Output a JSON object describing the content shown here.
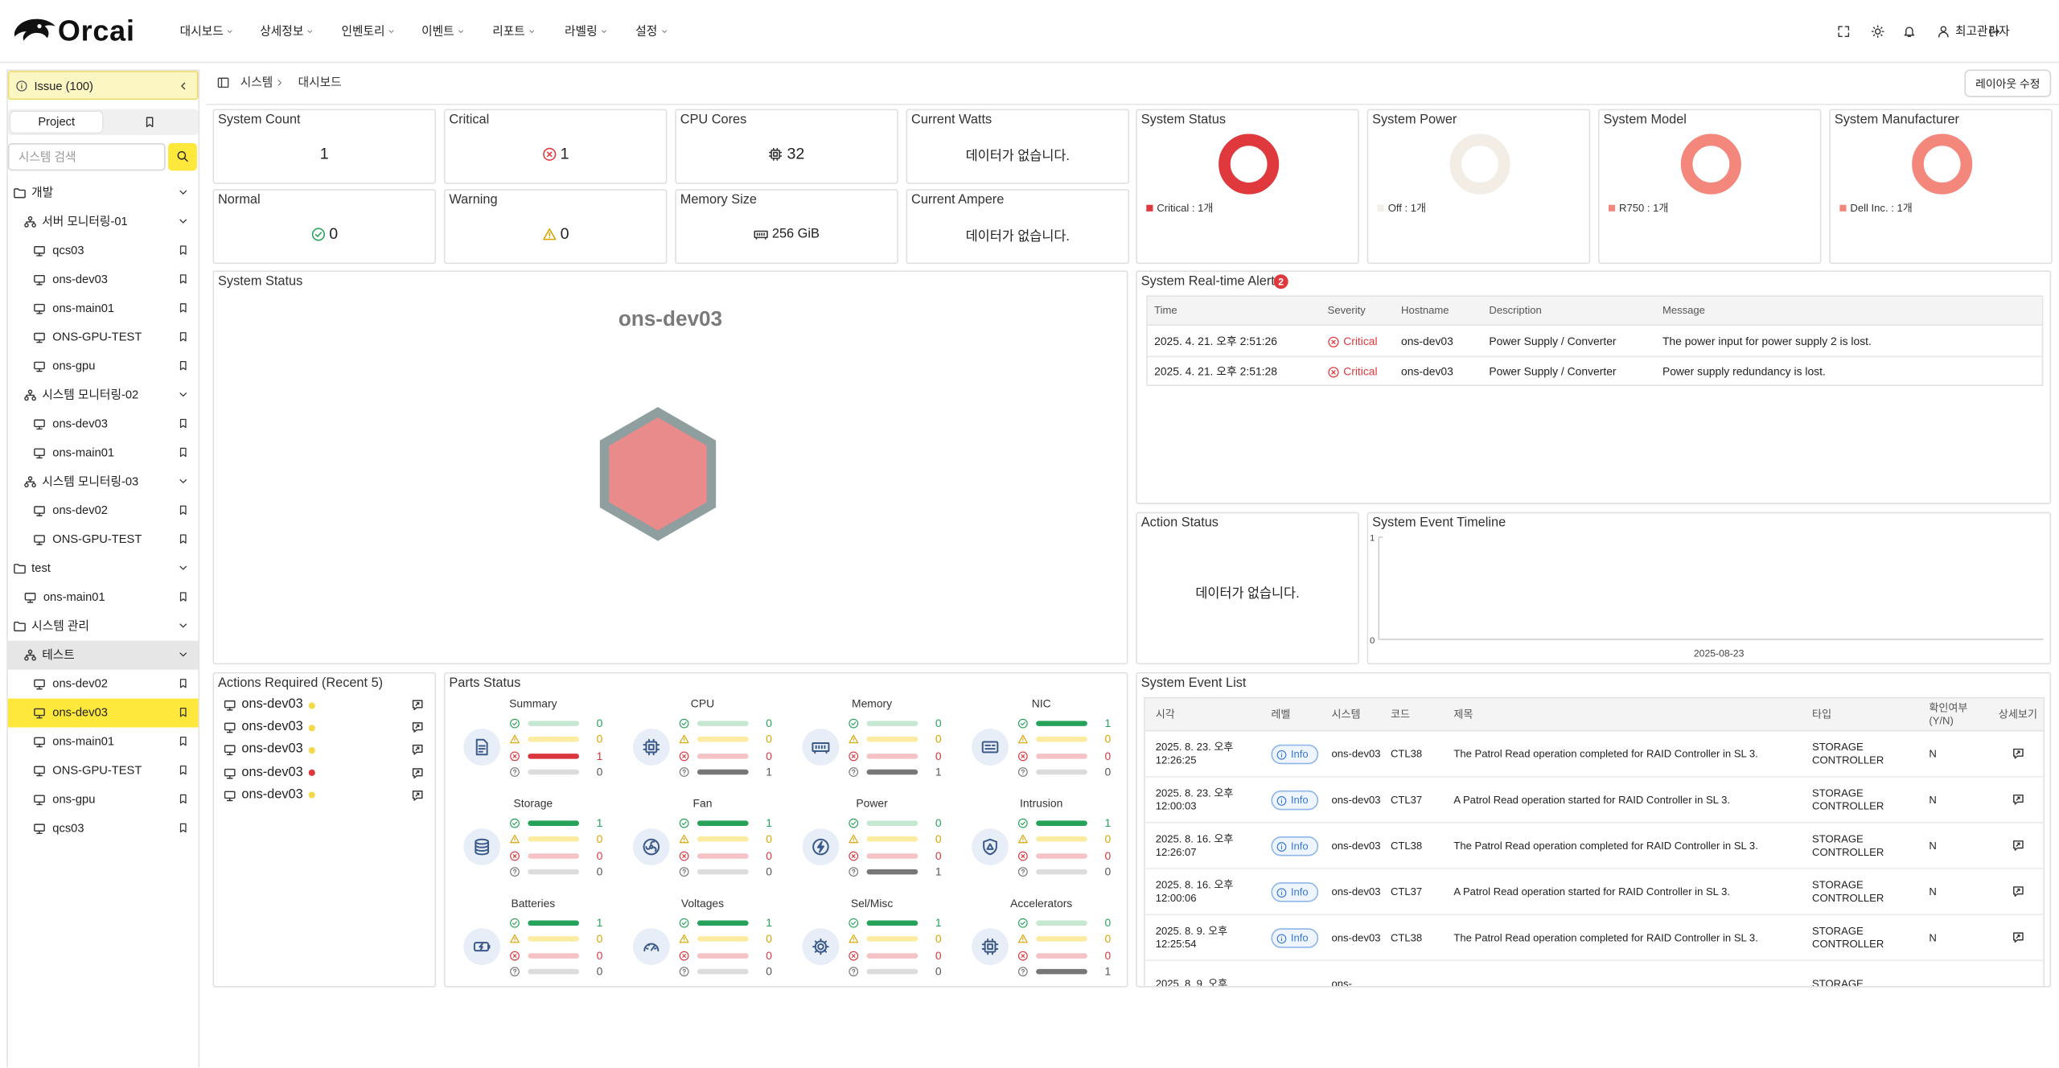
{
  "header": {
    "logo": "Orcai",
    "nav": [
      "대시보드",
      "상세정보",
      "인벤토리",
      "이벤트",
      "리포트",
      "라벨링",
      "설정"
    ],
    "user": "최고관리자"
  },
  "sidebar": {
    "issue": "Issue (100)",
    "tab": "Project",
    "search_placeholder": "시스템 검색",
    "tree": [
      {
        "label": "개발",
        "kind": "folder",
        "level": 0
      },
      {
        "label": "서버 모니터링-01",
        "kind": "group",
        "level": 1
      },
      {
        "label": "qcs03",
        "kind": "system",
        "level": 2
      },
      {
        "label": "ons-dev03",
        "kind": "system",
        "level": 2
      },
      {
        "label": "ons-main01",
        "kind": "system",
        "level": 2
      },
      {
        "label": "ONS-GPU-TEST",
        "kind": "system",
        "level": 2
      },
      {
        "label": "ons-gpu",
        "kind": "system",
        "level": 2
      },
      {
        "label": "시스템 모니터링-02",
        "kind": "group",
        "level": 1
      },
      {
        "label": "ons-dev03",
        "kind": "system",
        "level": 2
      },
      {
        "label": "ons-main01",
        "kind": "system",
        "level": 2
      },
      {
        "label": "시스템 모니터링-03",
        "kind": "group",
        "level": 1
      },
      {
        "label": "ons-dev02",
        "kind": "system",
        "level": 2
      },
      {
        "label": "ONS-GPU-TEST",
        "kind": "system",
        "level": 2
      },
      {
        "label": "test",
        "kind": "folder",
        "level": 0
      },
      {
        "label": "ons-main01",
        "kind": "system",
        "level": 1
      },
      {
        "label": "시스템 관리",
        "kind": "folder",
        "level": 0
      },
      {
        "label": "테스트",
        "kind": "group",
        "level": 1,
        "background": "#e6e6e6"
      },
      {
        "label": "ons-dev02",
        "kind": "system",
        "level": 2
      },
      {
        "label": "ons-dev03",
        "kind": "system",
        "level": 2,
        "background": "#fde83b"
      },
      {
        "label": "ons-main01",
        "kind": "system",
        "level": 2
      },
      {
        "label": "ONS-GPU-TEST",
        "kind": "system",
        "level": 2
      },
      {
        "label": "ons-gpu",
        "kind": "system",
        "level": 2
      },
      {
        "label": "qcs03",
        "kind": "system",
        "level": 2
      }
    ]
  },
  "breadcrumb": [
    "시스템",
    "대시보드"
  ],
  "layout_button": "레이아웃 수정",
  "stat_cards": [
    {
      "title": "System Count",
      "value": 1
    },
    {
      "title": "Critical",
      "value": 1
    },
    {
      "title": "CPU Cores",
      "value": 32
    },
    {
      "title": "Current Watts",
      "text": "데이터가 없습니다."
    },
    {
      "title": "Normal",
      "value": 0
    },
    {
      "title": "Warning",
      "value": 0
    },
    {
      "title": "Memory Size",
      "text": "256 GiB"
    },
    {
      "title": "Current Ampere",
      "text": "데이터가 없습니다."
    }
  ],
  "donut_cards": [
    {
      "title": "System Status",
      "legend": "Critical : 1개",
      "value": 1,
      "color": "#e0393d"
    },
    {
      "title": "System Power",
      "legend": "Off : 1개",
      "value": 1,
      "color": "#f3ede6"
    },
    {
      "title": "System Model",
      "legend": "R750 : 1개",
      "value": 1,
      "color": "#f4877b"
    },
    {
      "title": "System Manufacturer",
      "legend": "Dell Inc. : 1개",
      "value": 1,
      "color": "#f4877b"
    }
  ],
  "status_panel": {
    "title": "System Status",
    "host": "ons-dev03"
  },
  "alerts": {
    "title": "System Real-time Alert",
    "count": 2,
    "columns": [
      "Time",
      "Severity",
      "Hostname",
      "Description",
      "Message"
    ],
    "rows": [
      [
        "2025. 4. 21. 오후 2:51:26",
        "Critical",
        "ons-dev03",
        "Power Supply / Converter",
        "The power input for power supply 2 is lost."
      ],
      [
        "2025. 4. 21. 오후 2:51:28",
        "Critical",
        "ons-dev03",
        "Power Supply / Converter",
        "Power supply redundancy is lost."
      ]
    ]
  },
  "action_status": {
    "title": "Action Status",
    "empty": "데이터가 없습니다."
  },
  "timeline": {
    "title": "System Event Timeline",
    "ylim": [
      0,
      1
    ],
    "yticks": [
      0,
      1
    ],
    "x_label": "2025-08-23"
  },
  "actions_required": {
    "title": "Actions Required (Recent 5)",
    "items": [
      {
        "host": "ons-dev03",
        "color": "#f5d84a"
      },
      {
        "host": "ons-dev03",
        "color": "#f5d84a"
      },
      {
        "host": "ons-dev03",
        "color": "#f5d84a"
      },
      {
        "host": "ons-dev03",
        "color": "#e0393d"
      },
      {
        "host": "ons-dev03",
        "color": "#f5d84a"
      }
    ]
  },
  "parts": {
    "title": "Parts Status",
    "groups": [
      {
        "name": "Summary",
        "counts": [
          0,
          0,
          1,
          0
        ]
      },
      {
        "name": "CPU",
        "counts": [
          0,
          0,
          0,
          1
        ]
      },
      {
        "name": "Memory",
        "counts": [
          0,
          0,
          0,
          1
        ]
      },
      {
        "name": "NIC",
        "counts": [
          1,
          0,
          0,
          0
        ]
      },
      {
        "name": "Storage",
        "counts": [
          1,
          0,
          0,
          0
        ]
      },
      {
        "name": "Fan",
        "counts": [
          1,
          0,
          0,
          0
        ]
      },
      {
        "name": "Power",
        "counts": [
          0,
          0,
          0,
          1
        ]
      },
      {
        "name": "Intrusion",
        "counts": [
          1,
          0,
          0,
          0
        ]
      },
      {
        "name": "Batteries",
        "counts": [
          1,
          0,
          0,
          0
        ]
      },
      {
        "name": "Voltages",
        "counts": [
          1,
          0,
          0,
          0
        ]
      },
      {
        "name": "Sel/Misc",
        "counts": [
          1,
          0,
          0,
          0
        ]
      },
      {
        "name": "Accelerators",
        "counts": [
          0,
          0,
          0,
          1
        ]
      }
    ]
  },
  "events": {
    "title": "System Event List",
    "columns": [
      "시각",
      "레벨",
      "시스템",
      "코드",
      "제목",
      "타입",
      "확인여부 (Y/N)",
      "상세보기"
    ],
    "rows": [
      {
        "time": "2025. 8. 23. 오후 12:26:25",
        "level": "Info",
        "system": "ons-dev03",
        "code": "CTL38",
        "title": "The Patrol Read operation completed for RAID Controller in SL 3.",
        "type": "STORAGE CONTROLLER",
        "checked": "N"
      },
      {
        "time": "2025. 8. 23. 오후 12:00:03",
        "level": "Info",
        "system": "ons-dev03",
        "code": "CTL37",
        "title": "A Patrol Read operation started for RAID Controller in SL 3.",
        "type": "STORAGE CONTROLLER",
        "checked": "N"
      },
      {
        "time": "2025. 8. 16. 오후 12:26:07",
        "level": "Info",
        "system": "ons-dev03",
        "code": "CTL38",
        "title": "The Patrol Read operation completed for RAID Controller in SL 3.",
        "type": "STORAGE CONTROLLER",
        "checked": "N"
      },
      {
        "time": "2025. 8. 16. 오후 12:00:06",
        "level": "Info",
        "system": "ons-dev03",
        "code": "CTL37",
        "title": "A Patrol Read operation started for RAID Controller in SL 3.",
        "type": "STORAGE CONTROLLER",
        "checked": "N"
      },
      {
        "time": "2025. 8. 9. 오후 12:25:54",
        "level": "Info",
        "system": "ons-dev03",
        "code": "CTL38",
        "title": "The Patrol Read operation completed for RAID Controller in SL 3.",
        "type": "STORAGE CONTROLLER",
        "checked": "N"
      },
      {
        "time": "2025. 8. 9. 오후",
        "system": "ons-",
        "type": "STORAGE"
      }
    ]
  }
}
